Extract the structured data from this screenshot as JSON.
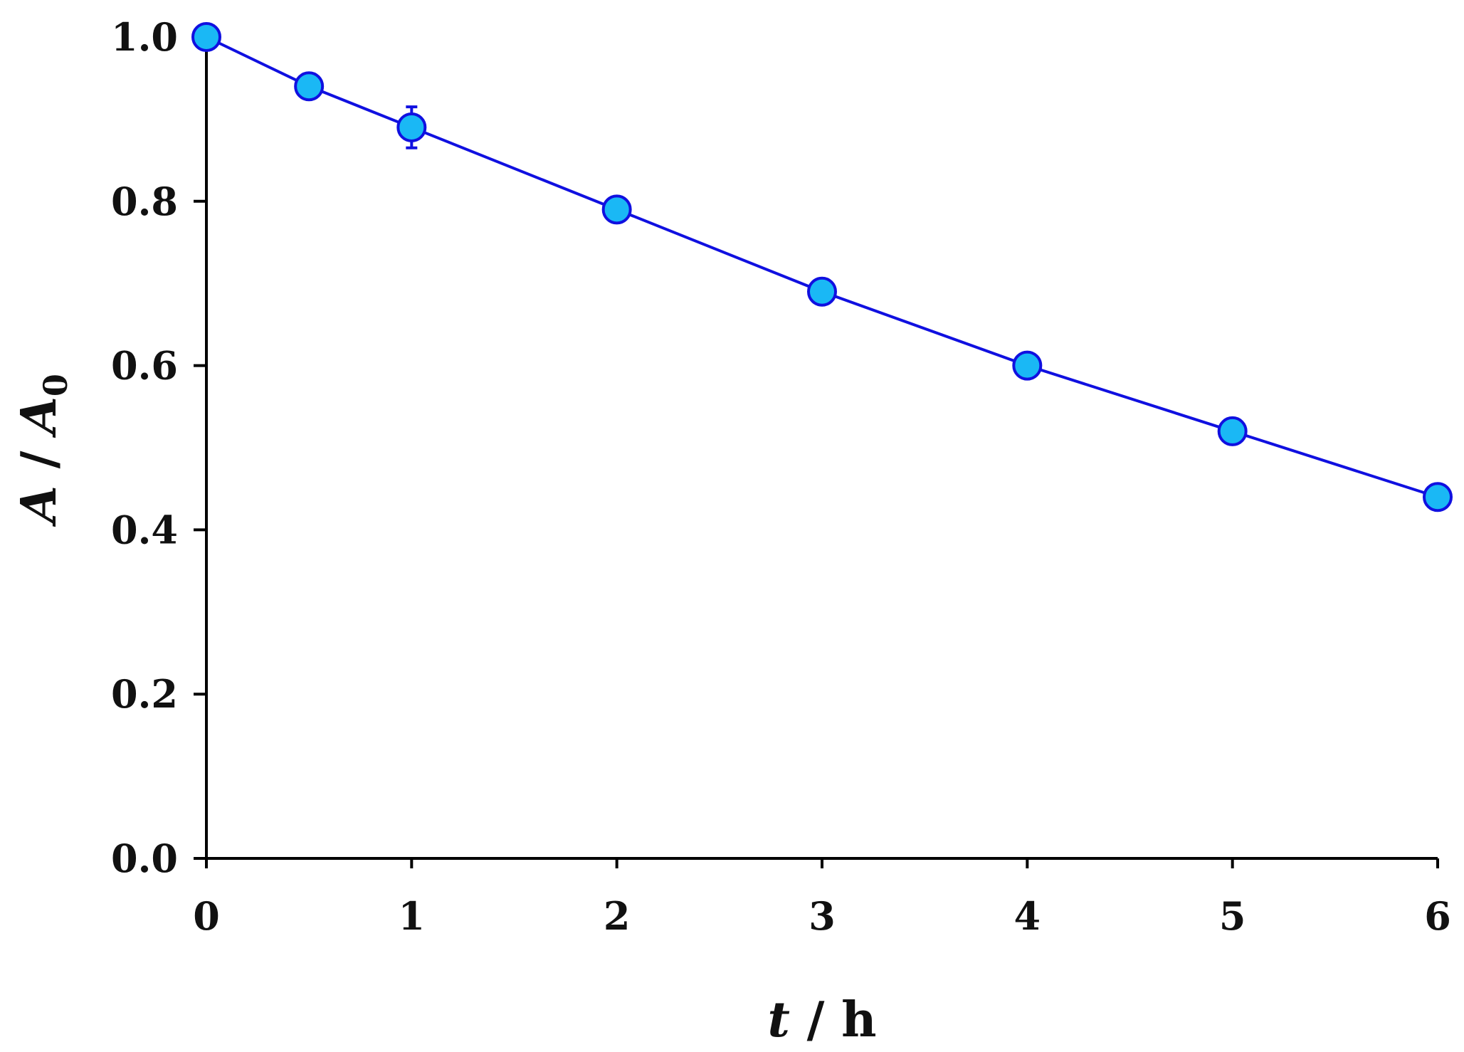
{
  "chart_data": {
    "type": "line",
    "xlabel": {
      "italic": "t",
      "rest": " / h"
    },
    "ylabel": {
      "italic1": "A",
      "mid": " / ",
      "italic2": "A",
      "subscript": "0"
    },
    "xlim": [
      0,
      6
    ],
    "ylim": [
      0.0,
      1.0
    ],
    "xticks": [
      0,
      1,
      2,
      3,
      4,
      5,
      6
    ],
    "xtick_labels": [
      "0",
      "1",
      "2",
      "3",
      "4",
      "5",
      "6"
    ],
    "yticks": [
      0.0,
      0.2,
      0.4,
      0.6,
      0.8,
      1.0
    ],
    "ytick_labels": [
      "0.0",
      "0.2",
      "0.4",
      "0.6",
      "0.8",
      "1.0"
    ],
    "grid": false,
    "series": [
      {
        "x": [
          0,
          0.5,
          1,
          2,
          3,
          4,
          5,
          6
        ],
        "y": [
          1.0,
          0.94,
          0.89,
          0.79,
          0.69,
          0.6,
          0.52,
          0.44
        ],
        "error": [
          0,
          0,
          0.025,
          0,
          0,
          0,
          0,
          0
        ],
        "line_color": "#1010e0",
        "marker_fill": "#1ab8f5",
        "marker_edge": "#1010e0"
      }
    ]
  }
}
